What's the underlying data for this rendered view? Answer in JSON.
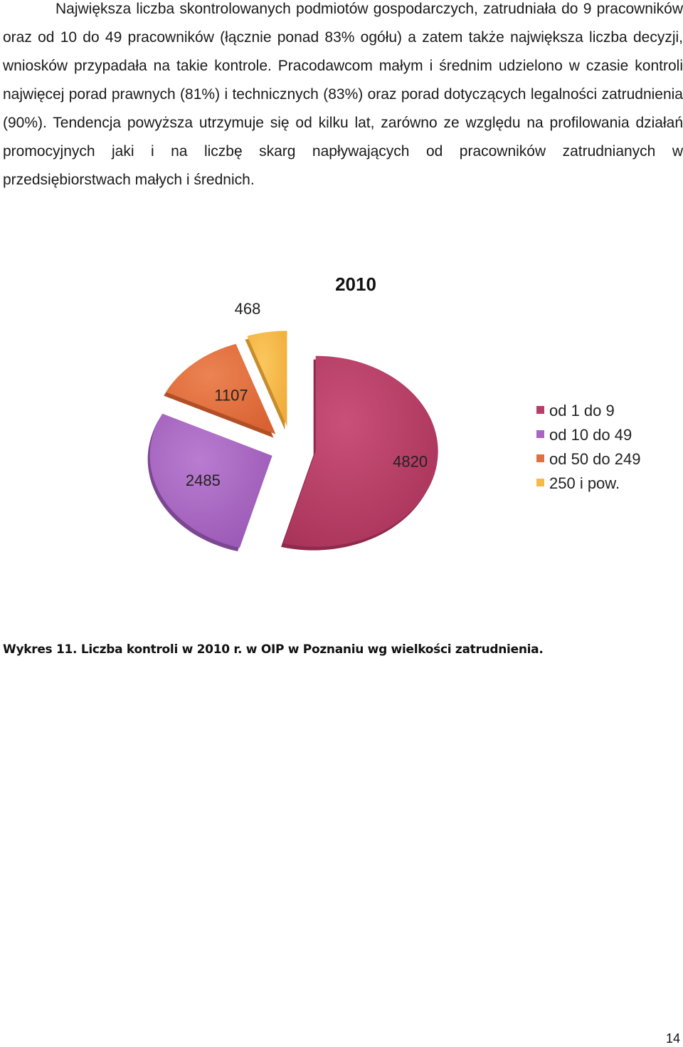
{
  "document": {
    "paragraph": "Największa liczba skontrolowanych podmiotów gospodarczych, zatrudniała do 9 pracowników oraz od 10 do 49 pracowników (łącznie ponad 83% ogółu) a zatem także największa liczba decyzji, wniosków przypadała na takie kontrole. Pracodawcom małym i średnim udzielono w czasie kontroli najwięcej porad prawnych (81%) i technicznych (83%) oraz porad dotyczących legalności zatrudnienia (90%). Tendencja powyższa utrzymuje się od kilku lat, zarówno ze względu na profilowania działań promocyjnych jaki i na liczbę skarg napływających od pracowników zatrudnianych w przedsiębiorstwach małych i średnich.",
    "caption": "Wykres 11. Liczba kontroli w 2010 r. w OIP w Poznaniu wg wielkości zatrudnienia.",
    "page_number": "14"
  },
  "chart_data": {
    "type": "pie",
    "title": "2010",
    "categories": [
      "od 1 do 9",
      "od 10 do 49",
      "od 50 do 249",
      "250 i pow."
    ],
    "values": [
      4820,
      2485,
      1107,
      468
    ],
    "colors": [
      "#b83d68",
      "#a866c2",
      "#e0703f",
      "#f7b94a"
    ],
    "exploded": true,
    "legend_position": "right"
  }
}
